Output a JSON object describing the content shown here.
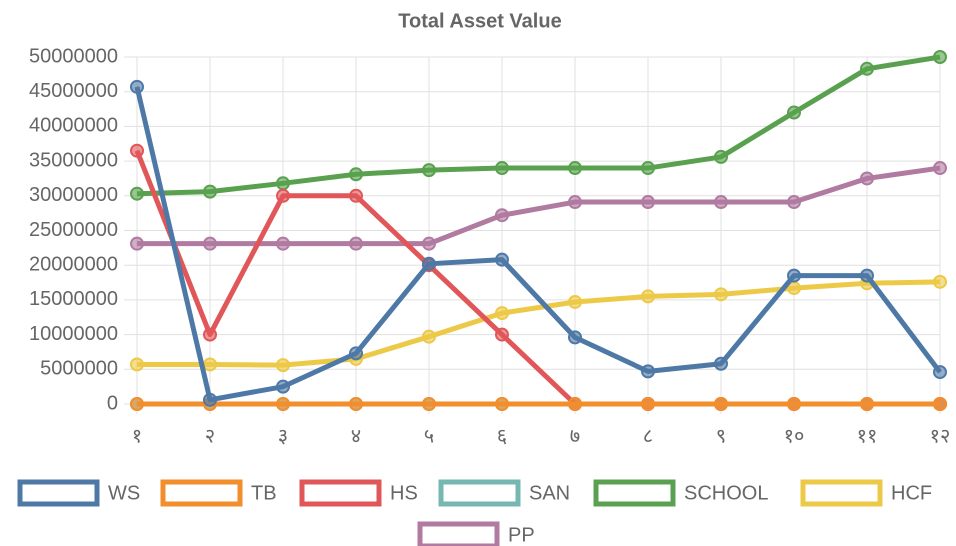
{
  "chart_data": {
    "type": "line",
    "title": "Total Asset Value",
    "categories": [
      "१",
      "२",
      "३",
      "४",
      "५",
      "६",
      "७",
      "८",
      "९",
      "१०",
      "११",
      "१२"
    ],
    "series": [
      {
        "name": "WS",
        "color": "#4e79a7",
        "values": [
          45700000,
          600000,
          2500000,
          7300000,
          20200000,
          20800000,
          9600000,
          4700000,
          5800000,
          18500000,
          18500000,
          4600000
        ]
      },
      {
        "name": "TB",
        "color": "#f28e2b",
        "values": [
          0,
          0,
          0,
          0,
          0,
          0,
          0,
          0,
          0,
          0,
          0,
          0
        ]
      },
      {
        "name": "HS",
        "color": "#e15759",
        "values": [
          36500000,
          10000000,
          30000000,
          30000000,
          20000000,
          10000000,
          0,
          0,
          0,
          0,
          0,
          0
        ]
      },
      {
        "name": "SAN",
        "color": "#76b7b2",
        "values": [
          0,
          0,
          0,
          0,
          0,
          0,
          0,
          0,
          0,
          0,
          0,
          0
        ]
      },
      {
        "name": "SCHOOL",
        "color": "#59a14f",
        "values": [
          30300000,
          30600000,
          31800000,
          33100000,
          33700000,
          34000000,
          34000000,
          34000000,
          35600000,
          42000000,
          48300000,
          50000000
        ]
      },
      {
        "name": "HCF",
        "color": "#edc948",
        "values": [
          5700000,
          5700000,
          5600000,
          6500000,
          9700000,
          13100000,
          14700000,
          15500000,
          15800000,
          16700000,
          17400000,
          17600000
        ]
      },
      {
        "name": "PP",
        "color": "#b07aa1",
        "values": [
          23100000,
          23100000,
          23100000,
          23100000,
          23100000,
          27200000,
          29100000,
          29100000,
          29100000,
          29100000,
          32500000,
          34000000
        ]
      }
    ],
    "ylim": [
      0,
      50000000
    ],
    "yticks": [
      0,
      5000000,
      10000000,
      15000000,
      20000000,
      25000000,
      30000000,
      35000000,
      40000000,
      45000000,
      50000000
    ],
    "grid": true,
    "legend": "bottom"
  }
}
